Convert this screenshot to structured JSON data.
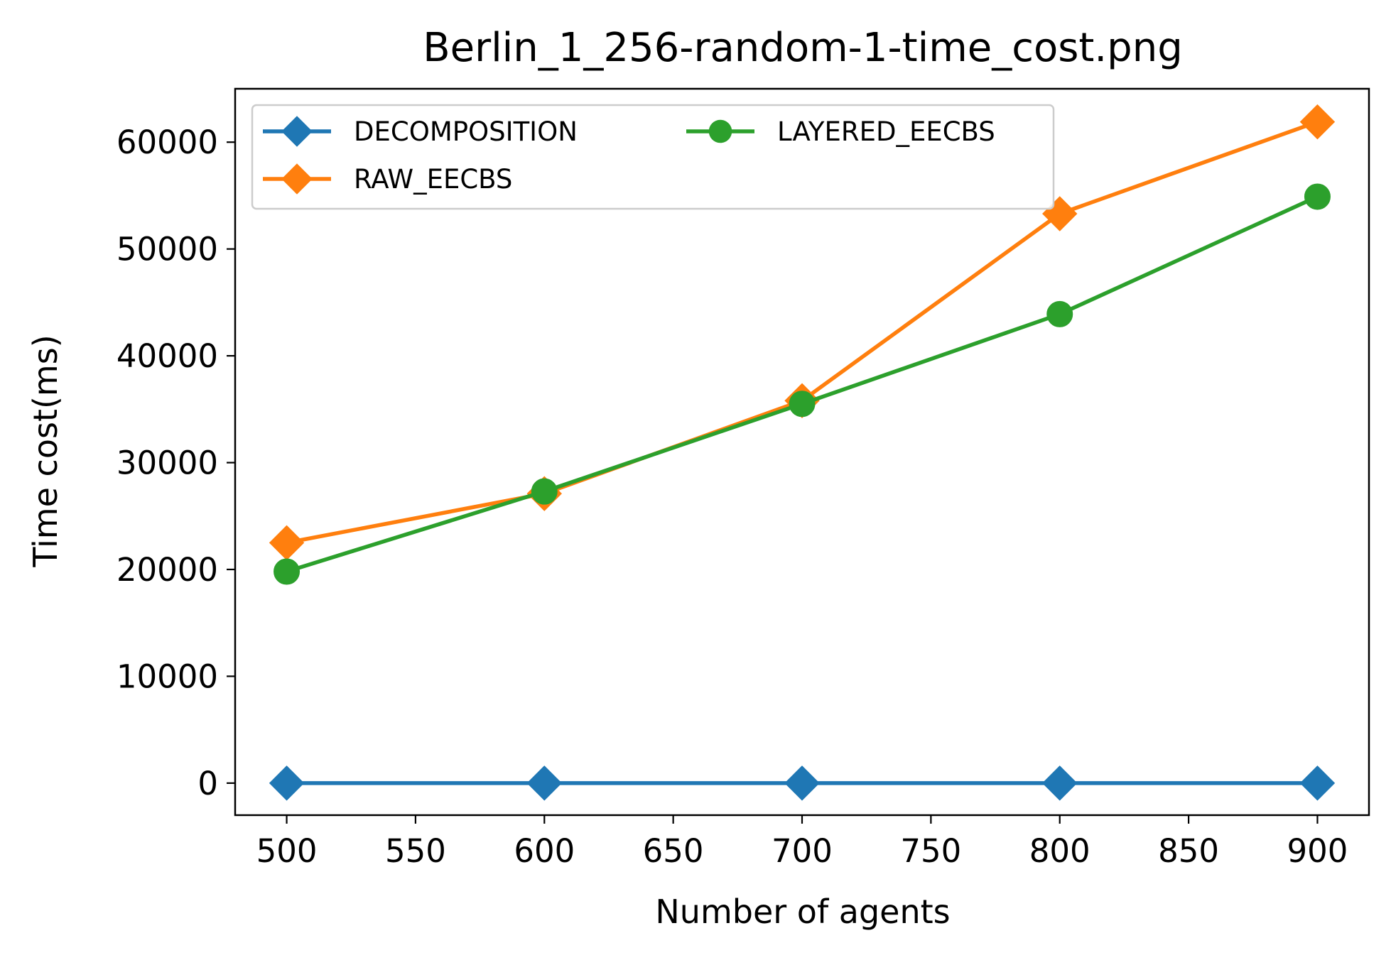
{
  "chart_data": {
    "type": "line",
    "title": "Berlin_1_256-random-1-time_cost.png",
    "xlabel": "Number of agents",
    "ylabel": "Time cost(ms)",
    "x": [
      500,
      600,
      700,
      800,
      900
    ],
    "xlim": [
      480,
      920
    ],
    "ylim": [
      -3000,
      65000
    ],
    "xticks": [
      500,
      550,
      600,
      650,
      700,
      750,
      800,
      850,
      900
    ],
    "yticks": [
      0,
      10000,
      20000,
      30000,
      40000,
      50000,
      60000
    ],
    "grid": false,
    "legend": {
      "position": "top-left",
      "columns": 2
    },
    "series": [
      {
        "name": "DECOMPOSITION",
        "values": [
          0,
          0,
          0,
          0,
          0
        ],
        "color": "#1f77b4",
        "marker": "diamond"
      },
      {
        "name": "RAW_EECBS",
        "values": [
          22500,
          27100,
          35800,
          53300,
          61900
        ],
        "color": "#ff7f0e",
        "marker": "diamond"
      },
      {
        "name": "LAYERED_EECBS",
        "values": [
          19800,
          27300,
          35500,
          43900,
          54900
        ],
        "color": "#2ca02c",
        "marker": "circle"
      }
    ]
  }
}
